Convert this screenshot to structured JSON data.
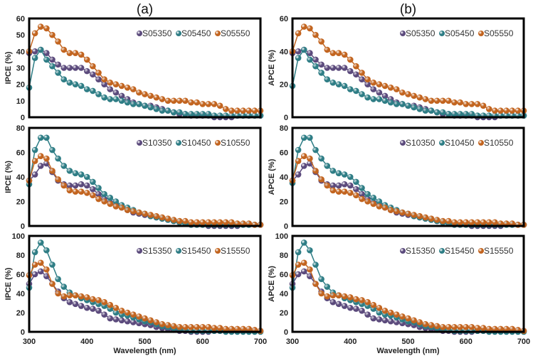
{
  "colors": {
    "purple": "#5b4a7c",
    "teal": "#2e7d85",
    "orange": "#c2641f"
  },
  "chart_data": [
    {
      "type": "line",
      "panel_title": "(a)",
      "ylabel": "IPCE (%)",
      "xlabel": "",
      "ylim": [
        0,
        60
      ],
      "yticks": [
        0,
        10,
        20,
        30,
        40,
        50,
        60
      ],
      "xlim": [
        300,
        700
      ],
      "xticks": [],
      "legend": "top-right",
      "x": [
        300,
        310,
        320,
        330,
        340,
        350,
        360,
        370,
        380,
        390,
        400,
        410,
        420,
        430,
        440,
        450,
        460,
        470,
        480,
        490,
        500,
        510,
        520,
        530,
        540,
        550,
        560,
        570,
        580,
        590,
        600,
        610,
        620,
        630,
        640,
        650,
        660,
        670,
        680,
        690,
        700
      ],
      "series": [
        {
          "name": "S05350",
          "color": "purple",
          "values": [
            39,
            40,
            41,
            39,
            35,
            32,
            30,
            30,
            30,
            30,
            28,
            26,
            23,
            20,
            17,
            15,
            13,
            11,
            9,
            8,
            7,
            7,
            6,
            5,
            4,
            3,
            2,
            2,
            1,
            1,
            1,
            1,
            0,
            0,
            0,
            0,
            1,
            1,
            1,
            1,
            1
          ]
        },
        {
          "name": "S05450",
          "color": "teal",
          "values": [
            18,
            36,
            41,
            35,
            31,
            27,
            23,
            21,
            20,
            19,
            17,
            16,
            14,
            12,
            11,
            11,
            10,
            9,
            8,
            8,
            7,
            6,
            5,
            4,
            4,
            3,
            3,
            2,
            2,
            2,
            2,
            2,
            1,
            1,
            1,
            1,
            1,
            1,
            1,
            1,
            1
          ]
        },
        {
          "name": "S05550",
          "color": "orange",
          "values": [
            40,
            51,
            55,
            54,
            50,
            46,
            41,
            39,
            39,
            38,
            35,
            31,
            27,
            23,
            21,
            20,
            19,
            18,
            17,
            15,
            14,
            13,
            12,
            11,
            10,
            10,
            10,
            10,
            9,
            9,
            8,
            8,
            8,
            7,
            5,
            4,
            4,
            4,
            4,
            4,
            4
          ]
        }
      ]
    },
    {
      "type": "line",
      "panel_title": "",
      "ylabel": "IPCE (%)",
      "xlabel": "",
      "ylim": [
        0,
        80
      ],
      "yticks": [
        0,
        20,
        40,
        60,
        80
      ],
      "xlim": [
        300,
        700
      ],
      "xticks": [],
      "legend": "top-right",
      "x": [
        300,
        310,
        320,
        330,
        340,
        350,
        360,
        370,
        380,
        390,
        400,
        410,
        420,
        430,
        440,
        450,
        460,
        470,
        480,
        490,
        500,
        510,
        520,
        530,
        540,
        550,
        560,
        570,
        580,
        590,
        600,
        610,
        620,
        630,
        640,
        650,
        660,
        670,
        680,
        690,
        700
      ],
      "series": [
        {
          "name": "S10350",
          "color": "purple",
          "values": [
            37,
            42,
            49,
            51,
            44,
            37,
            34,
            33,
            33,
            34,
            33,
            30,
            26,
            22,
            19,
            17,
            15,
            13,
            11,
            10,
            9,
            8,
            7,
            6,
            5,
            4,
            3,
            2,
            1,
            1,
            1,
            0,
            0,
            0,
            0,
            0,
            0,
            1,
            1,
            1,
            1
          ]
        },
        {
          "name": "S10450",
          "color": "teal",
          "values": [
            34,
            62,
            72,
            72,
            62,
            55,
            49,
            45,
            43,
            42,
            40,
            36,
            31,
            26,
            23,
            20,
            17,
            15,
            13,
            11,
            10,
            8,
            7,
            6,
            5,
            4,
            3,
            2,
            1,
            1,
            1,
            1,
            1,
            1,
            1,
            1,
            1,
            1,
            1,
            1,
            1
          ]
        },
        {
          "name": "S10550",
          "color": "orange",
          "values": [
            37,
            53,
            57,
            55,
            45,
            38,
            33,
            29,
            28,
            28,
            27,
            25,
            22,
            20,
            18,
            16,
            15,
            13,
            12,
            11,
            10,
            9,
            8,
            7,
            6,
            5,
            4,
            4,
            3,
            3,
            3,
            3,
            3,
            3,
            3,
            3,
            2,
            2,
            2,
            1,
            1
          ]
        }
      ]
    },
    {
      "type": "line",
      "panel_title": "",
      "ylabel": "IPCE (%)",
      "xlabel": "Wavelength (nm)",
      "ylim": [
        0,
        100
      ],
      "yticks": [
        0,
        20,
        40,
        60,
        80,
        100
      ],
      "xlim": [
        300,
        700
      ],
      "xticks": [
        300,
        400,
        500,
        600,
        700
      ],
      "legend": "top-right",
      "x": [
        300,
        310,
        320,
        330,
        340,
        350,
        360,
        370,
        380,
        390,
        400,
        410,
        420,
        430,
        440,
        450,
        460,
        470,
        480,
        490,
        500,
        510,
        520,
        530,
        540,
        550,
        560,
        570,
        580,
        590,
        600,
        610,
        620,
        630,
        640,
        650,
        660,
        670,
        680,
        690,
        700
      ],
      "series": [
        {
          "name": "S15350",
          "color": "purple",
          "values": [
            50,
            60,
            63,
            58,
            50,
            42,
            35,
            31,
            29,
            27,
            25,
            24,
            22,
            18,
            14,
            13,
            12,
            11,
            10,
            9,
            8,
            7,
            5,
            4,
            3,
            2,
            1,
            1,
            0,
            0,
            0,
            0,
            1,
            1,
            1,
            1,
            1,
            1,
            1,
            1,
            1
          ]
        },
        {
          "name": "S15450",
          "color": "teal",
          "values": [
            46,
            83,
            93,
            85,
            70,
            55,
            47,
            41,
            38,
            35,
            33,
            31,
            29,
            27,
            24,
            20,
            18,
            17,
            15,
            13,
            11,
            10,
            8,
            6,
            5,
            4,
            3,
            2,
            1,
            1,
            1,
            1,
            1,
            1,
            0,
            0,
            0,
            0,
            0,
            0,
            0
          ]
        },
        {
          "name": "S15550",
          "color": "orange",
          "values": [
            59,
            70,
            72,
            65,
            50,
            40,
            37,
            38,
            38,
            37,
            36,
            34,
            33,
            31,
            28,
            25,
            22,
            20,
            18,
            16,
            14,
            12,
            10,
            8,
            7,
            6,
            5,
            5,
            5,
            5,
            5,
            5,
            4,
            4,
            3,
            3,
            3,
            3,
            3,
            2,
            1
          ]
        }
      ]
    },
    {
      "type": "line",
      "panel_title": "(b)",
      "ylabel": "APCE (%)",
      "xlabel": "",
      "ylim": [
        0,
        60
      ],
      "yticks": [
        0,
        20,
        40,
        60
      ],
      "xlim": [
        300,
        700
      ],
      "xticks": [],
      "legend": "top-right",
      "x": [
        300,
        310,
        320,
        330,
        340,
        350,
        360,
        370,
        380,
        390,
        400,
        410,
        420,
        430,
        440,
        450,
        460,
        470,
        480,
        490,
        500,
        510,
        520,
        530,
        540,
        550,
        560,
        570,
        580,
        590,
        600,
        610,
        620,
        630,
        640,
        650,
        660,
        670,
        680,
        690,
        700
      ],
      "series": [
        {
          "name": "S05350",
          "color": "purple",
          "values": [
            39,
            40,
            41,
            39,
            35,
            32,
            30,
            30,
            30,
            30,
            28,
            26,
            23,
            20,
            17,
            15,
            13,
            11,
            9,
            8,
            7,
            7,
            6,
            5,
            4,
            3,
            2,
            2,
            1,
            1,
            1,
            1,
            0,
            0,
            0,
            0,
            1,
            1,
            1,
            1,
            1
          ]
        },
        {
          "name": "S05450",
          "color": "teal",
          "values": [
            19,
            36,
            41,
            35,
            31,
            27,
            23,
            21,
            20,
            19,
            17,
            16,
            14,
            12,
            11,
            11,
            10,
            9,
            8,
            8,
            7,
            6,
            5,
            4,
            4,
            3,
            3,
            2,
            2,
            2,
            2,
            2,
            1,
            1,
            1,
            1,
            1,
            1,
            1,
            1,
            1
          ]
        },
        {
          "name": "S05550",
          "color": "orange",
          "values": [
            40,
            51,
            55,
            54,
            50,
            46,
            41,
            39,
            39,
            38,
            35,
            31,
            27,
            23,
            21,
            20,
            19,
            18,
            17,
            15,
            14,
            13,
            12,
            11,
            10,
            10,
            10,
            10,
            9,
            9,
            8,
            8,
            8,
            7,
            5,
            4,
            4,
            4,
            4,
            4,
            4
          ]
        }
      ]
    },
    {
      "type": "line",
      "panel_title": "",
      "ylabel": "APCE (%)",
      "xlabel": "",
      "ylim": [
        0,
        80
      ],
      "yticks": [
        0,
        20,
        40,
        60,
        80
      ],
      "xlim": [
        300,
        700
      ],
      "xticks": [],
      "legend": "top-right",
      "x": [
        300,
        310,
        320,
        330,
        340,
        350,
        360,
        370,
        380,
        390,
        400,
        410,
        420,
        430,
        440,
        450,
        460,
        470,
        480,
        490,
        500,
        510,
        520,
        530,
        540,
        550,
        560,
        570,
        580,
        590,
        600,
        610,
        620,
        630,
        640,
        650,
        660,
        670,
        680,
        690,
        700
      ],
      "series": [
        {
          "name": "S10350",
          "color": "purple",
          "values": [
            37,
            42,
            49,
            51,
            44,
            37,
            34,
            33,
            33,
            34,
            33,
            30,
            26,
            22,
            19,
            17,
            15,
            13,
            11,
            10,
            9,
            8,
            7,
            6,
            5,
            4,
            3,
            2,
            1,
            1,
            1,
            0,
            0,
            0,
            0,
            0,
            0,
            1,
            1,
            1,
            1
          ]
        },
        {
          "name": "S10450",
          "color": "teal",
          "values": [
            35,
            62,
            72,
            72,
            62,
            55,
            49,
            45,
            43,
            42,
            40,
            36,
            31,
            26,
            23,
            20,
            17,
            15,
            13,
            11,
            10,
            8,
            7,
            6,
            5,
            4,
            3,
            2,
            1,
            1,
            1,
            1,
            1,
            1,
            1,
            1,
            1,
            1,
            1,
            1,
            1
          ]
        },
        {
          "name": "S10550",
          "color": "orange",
          "values": [
            37,
            53,
            57,
            55,
            45,
            38,
            33,
            29,
            28,
            28,
            27,
            25,
            22,
            20,
            18,
            16,
            15,
            13,
            12,
            11,
            10,
            9,
            8,
            7,
            6,
            5,
            4,
            4,
            3,
            3,
            3,
            3,
            3,
            3,
            3,
            3,
            2,
            2,
            2,
            1,
            1
          ]
        }
      ]
    },
    {
      "type": "line",
      "panel_title": "",
      "ylabel": "APCE (%)",
      "xlabel": "Wavelength (nm)",
      "ylim": [
        0,
        100
      ],
      "yticks": [
        0,
        20,
        40,
        60,
        80,
        100
      ],
      "xlim": [
        300,
        700
      ],
      "xticks": [
        300,
        400,
        500,
        600,
        700
      ],
      "legend": "top-right",
      "x": [
        300,
        310,
        320,
        330,
        340,
        350,
        360,
        370,
        380,
        390,
        400,
        410,
        420,
        430,
        440,
        450,
        460,
        470,
        480,
        490,
        500,
        510,
        520,
        530,
        540,
        550,
        560,
        570,
        580,
        590,
        600,
        610,
        620,
        630,
        640,
        650,
        660,
        670,
        680,
        690,
        700
      ],
      "series": [
        {
          "name": "S15350",
          "color": "purple",
          "values": [
            50,
            60,
            63,
            58,
            50,
            42,
            35,
            31,
            29,
            27,
            25,
            24,
            22,
            18,
            14,
            13,
            12,
            11,
            10,
            9,
            8,
            7,
            5,
            4,
            3,
            2,
            1,
            1,
            0,
            0,
            0,
            0,
            1,
            1,
            1,
            1,
            1,
            1,
            1,
            1,
            1
          ]
        },
        {
          "name": "S15450",
          "color": "teal",
          "values": [
            46,
            83,
            93,
            85,
            70,
            55,
            47,
            41,
            38,
            35,
            33,
            31,
            29,
            27,
            24,
            20,
            18,
            17,
            15,
            13,
            11,
            10,
            8,
            6,
            5,
            4,
            3,
            2,
            1,
            1,
            1,
            1,
            1,
            1,
            0,
            0,
            0,
            0,
            0,
            0,
            0
          ]
        },
        {
          "name": "S15550",
          "color": "orange",
          "values": [
            59,
            70,
            72,
            65,
            50,
            40,
            37,
            38,
            38,
            37,
            36,
            34,
            33,
            31,
            28,
            25,
            22,
            20,
            18,
            16,
            14,
            12,
            10,
            8,
            7,
            6,
            5,
            5,
            5,
            5,
            5,
            5,
            4,
            4,
            3,
            3,
            3,
            3,
            3,
            2,
            1
          ]
        }
      ]
    }
  ]
}
